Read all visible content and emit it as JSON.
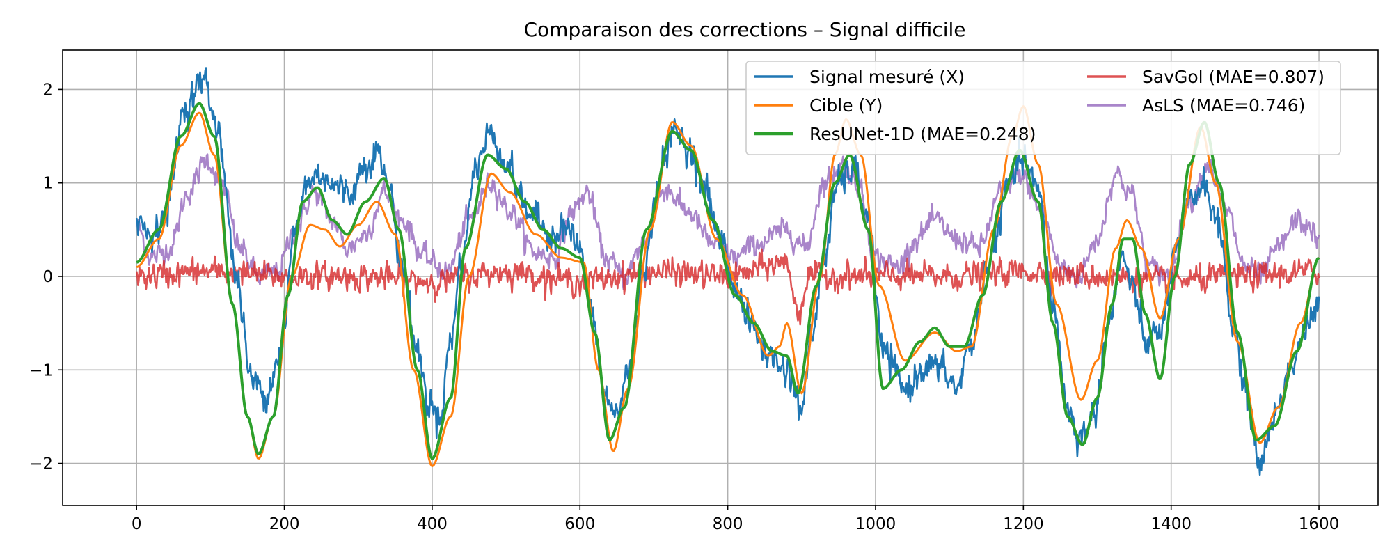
{
  "chart_data": {
    "type": "line",
    "title": "Comparaison des corrections – Signal difficile",
    "xlabel": "",
    "ylabel": "",
    "xlim": [
      -100,
      1680
    ],
    "ylim": [
      -2.45,
      2.42
    ],
    "xticks": [
      0,
      200,
      400,
      600,
      800,
      1000,
      1200,
      1400,
      1600
    ],
    "yticks": [
      -2,
      -1,
      0,
      1,
      2
    ],
    "xtick_labels": [
      "0",
      "200",
      "400",
      "600",
      "800",
      "1000",
      "1200",
      "1400",
      "1600"
    ],
    "ytick_labels": [
      "−2",
      "−1",
      "0",
      "1",
      "2"
    ],
    "grid": true,
    "legend_position": "top-right",
    "legend_columns": 2,
    "x_range": [
      0,
      1600
    ],
    "series": [
      {
        "name": "Signal mesuré (X)",
        "color": "#1f77b4",
        "style": "noisy",
        "noise_amplitude": 0.12,
        "keyframes": [
          [
            0,
            0.6
          ],
          [
            20,
            0.45
          ],
          [
            40,
            0.7
          ],
          [
            65,
            1.8
          ],
          [
            90,
            2.1
          ],
          [
            110,
            1.6
          ],
          [
            135,
            0.0
          ],
          [
            155,
            -1.1
          ],
          [
            175,
            -1.25
          ],
          [
            195,
            -0.8
          ],
          [
            215,
            0.5
          ],
          [
            230,
            1.0
          ],
          [
            250,
            1.1
          ],
          [
            270,
            0.95
          ],
          [
            290,
            0.9
          ],
          [
            310,
            1.2
          ],
          [
            325,
            1.35
          ],
          [
            340,
            1.0
          ],
          [
            360,
            0.1
          ],
          [
            380,
            -0.8
          ],
          [
            395,
            -1.35
          ],
          [
            410,
            -1.5
          ],
          [
            425,
            -0.7
          ],
          [
            440,
            0.2
          ],
          [
            460,
            1.2
          ],
          [
            480,
            1.55
          ],
          [
            500,
            1.2
          ],
          [
            530,
            0.7
          ],
          [
            560,
            0.45
          ],
          [
            580,
            0.55
          ],
          [
            600,
            0.3
          ],
          [
            615,
            -0.4
          ],
          [
            635,
            -1.3
          ],
          [
            650,
            -1.5
          ],
          [
            665,
            -1.0
          ],
          [
            690,
            0.2
          ],
          [
            710,
            1.2
          ],
          [
            730,
            1.55
          ],
          [
            750,
            1.35
          ],
          [
            770,
            0.9
          ],
          [
            790,
            0.4
          ],
          [
            810,
            -0.1
          ],
          [
            830,
            -0.5
          ],
          [
            855,
            -0.85
          ],
          [
            880,
            -1.0
          ],
          [
            900,
            -1.4
          ],
          [
            915,
            -0.6
          ],
          [
            930,
            0.2
          ],
          [
            950,
            1.0
          ],
          [
            970,
            1.15
          ],
          [
            990,
            0.6
          ],
          [
            1010,
            -0.8
          ],
          [
            1040,
            -1.2
          ],
          [
            1070,
            -0.95
          ],
          [
            1090,
            -1.0
          ],
          [
            1110,
            -1.2
          ],
          [
            1130,
            -0.7
          ],
          [
            1155,
            0.2
          ],
          [
            1180,
            1.0
          ],
          [
            1200,
            1.25
          ],
          [
            1220,
            0.9
          ],
          [
            1240,
            -0.3
          ],
          [
            1260,
            -1.4
          ],
          [
            1275,
            -1.75
          ],
          [
            1295,
            -1.5
          ],
          [
            1315,
            -0.5
          ],
          [
            1335,
            0.2
          ],
          [
            1350,
            -0.2
          ],
          [
            1365,
            -0.7
          ],
          [
            1385,
            -0.6
          ],
          [
            1405,
            0.2
          ],
          [
            1425,
            0.8
          ],
          [
            1445,
            1.0
          ],
          [
            1465,
            0.5
          ],
          [
            1485,
            -0.6
          ],
          [
            1505,
            -1.4
          ],
          [
            1520,
            -2.0
          ],
          [
            1540,
            -1.5
          ],
          [
            1560,
            -1.0
          ],
          [
            1580,
            -0.6
          ],
          [
            1600,
            -0.35
          ]
        ]
      },
      {
        "name": "Cible (Y)",
        "color": "#ff7f0e",
        "style": "smooth",
        "keyframes": [
          [
            0,
            0.1
          ],
          [
            30,
            0.4
          ],
          [
            60,
            1.4
          ],
          [
            85,
            1.75
          ],
          [
            105,
            1.3
          ],
          [
            130,
            -0.3
          ],
          [
            150,
            -1.5
          ],
          [
            165,
            -1.95
          ],
          [
            185,
            -1.5
          ],
          [
            210,
            0.0
          ],
          [
            235,
            0.55
          ],
          [
            255,
            0.5
          ],
          [
            275,
            0.32
          ],
          [
            300,
            0.55
          ],
          [
            325,
            0.8
          ],
          [
            350,
            0.45
          ],
          [
            375,
            -1.0
          ],
          [
            400,
            -2.03
          ],
          [
            425,
            -1.5
          ],
          [
            450,
            0.0
          ],
          [
            480,
            1.1
          ],
          [
            505,
            0.9
          ],
          [
            540,
            0.45
          ],
          [
            575,
            0.2
          ],
          [
            605,
            0.15
          ],
          [
            625,
            -1.0
          ],
          [
            645,
            -1.87
          ],
          [
            665,
            -1.2
          ],
          [
            695,
            0.5
          ],
          [
            725,
            1.65
          ],
          [
            750,
            1.4
          ],
          [
            785,
            0.4
          ],
          [
            820,
            -0.2
          ],
          [
            855,
            -0.85
          ],
          [
            870,
            -0.75
          ],
          [
            880,
            -0.5
          ],
          [
            900,
            -1.25
          ],
          [
            925,
            0.0
          ],
          [
            945,
            1.3
          ],
          [
            960,
            1.68
          ],
          [
            980,
            1.3
          ],
          [
            1005,
            -0.1
          ],
          [
            1040,
            -0.9
          ],
          [
            1080,
            -0.6
          ],
          [
            1110,
            -0.8
          ],
          [
            1130,
            -0.75
          ],
          [
            1160,
            0.5
          ],
          [
            1185,
            1.5
          ],
          [
            1200,
            1.82
          ],
          [
            1220,
            1.2
          ],
          [
            1245,
            -0.3
          ],
          [
            1278,
            -1.32
          ],
          [
            1300,
            -0.9
          ],
          [
            1325,
            0.3
          ],
          [
            1340,
            0.6
          ],
          [
            1360,
            0.3
          ],
          [
            1385,
            -0.45
          ],
          [
            1410,
            0.4
          ],
          [
            1440,
            1.6
          ],
          [
            1460,
            1.0
          ],
          [
            1490,
            -0.7
          ],
          [
            1520,
            -1.78
          ],
          [
            1545,
            -1.4
          ],
          [
            1575,
            -0.5
          ],
          [
            1600,
            0.2
          ]
        ]
      },
      {
        "name": "ResUNet-1D (MAE=0.248)",
        "color": "#2ca02c",
        "style": "smooth",
        "keyframes": [
          [
            0,
            0.15
          ],
          [
            30,
            0.5
          ],
          [
            60,
            1.5
          ],
          [
            85,
            1.85
          ],
          [
            105,
            1.5
          ],
          [
            130,
            -0.3
          ],
          [
            150,
            -1.5
          ],
          [
            165,
            -1.9
          ],
          [
            185,
            -1.5
          ],
          [
            205,
            -0.2
          ],
          [
            225,
            0.8
          ],
          [
            245,
            0.95
          ],
          [
            265,
            0.6
          ],
          [
            285,
            0.45
          ],
          [
            310,
            0.8
          ],
          [
            335,
            1.05
          ],
          [
            355,
            0.5
          ],
          [
            380,
            -1.0
          ],
          [
            400,
            -1.95
          ],
          [
            425,
            -1.3
          ],
          [
            445,
            0.3
          ],
          [
            475,
            1.3
          ],
          [
            500,
            1.15
          ],
          [
            525,
            0.8
          ],
          [
            550,
            0.5
          ],
          [
            575,
            0.3
          ],
          [
            600,
            0.2
          ],
          [
            620,
            -0.6
          ],
          [
            640,
            -1.75
          ],
          [
            660,
            -1.4
          ],
          [
            690,
            0.5
          ],
          [
            725,
            1.55
          ],
          [
            750,
            1.35
          ],
          [
            780,
            0.6
          ],
          [
            810,
            -0.2
          ],
          [
            835,
            -0.5
          ],
          [
            860,
            -0.8
          ],
          [
            880,
            -0.85
          ],
          [
            895,
            -1.25
          ],
          [
            920,
            -0.1
          ],
          [
            945,
            1.0
          ],
          [
            965,
            1.3
          ],
          [
            990,
            0.5
          ],
          [
            1010,
            -1.2
          ],
          [
            1035,
            -1.0
          ],
          [
            1060,
            -0.7
          ],
          [
            1080,
            -0.55
          ],
          [
            1100,
            -0.75
          ],
          [
            1120,
            -0.75
          ],
          [
            1145,
            -0.2
          ],
          [
            1170,
            0.8
          ],
          [
            1195,
            1.35
          ],
          [
            1220,
            0.8
          ],
          [
            1240,
            -0.5
          ],
          [
            1260,
            -1.5
          ],
          [
            1280,
            -1.8
          ],
          [
            1300,
            -1.3
          ],
          [
            1320,
            -0.3
          ],
          [
            1335,
            0.4
          ],
          [
            1348,
            0.4
          ],
          [
            1365,
            -0.4
          ],
          [
            1385,
            -1.1
          ],
          [
            1405,
            0.0
          ],
          [
            1425,
            1.2
          ],
          [
            1445,
            1.65
          ],
          [
            1465,
            1.0
          ],
          [
            1490,
            -0.6
          ],
          [
            1515,
            -1.75
          ],
          [
            1540,
            -1.6
          ],
          [
            1570,
            -0.8
          ],
          [
            1600,
            0.2
          ]
        ]
      },
      {
        "name": "SavGol (MAE=0.807)",
        "color": "#d62728",
        "style": "noisy",
        "noise_amplitude": 0.1,
        "keyframes": [
          [
            0,
            0.0
          ],
          [
            100,
            0.05
          ],
          [
            200,
            0.0
          ],
          [
            300,
            0.0
          ],
          [
            400,
            -0.05
          ],
          [
            500,
            0.05
          ],
          [
            600,
            -0.05
          ],
          [
            700,
            0.05
          ],
          [
            800,
            0.0
          ],
          [
            880,
            0.15
          ],
          [
            895,
            -0.4
          ],
          [
            910,
            0.0
          ],
          [
            1000,
            0.0
          ],
          [
            1100,
            0.0
          ],
          [
            1200,
            0.05
          ],
          [
            1300,
            0.0
          ],
          [
            1400,
            -0.05
          ],
          [
            1500,
            0.0
          ],
          [
            1600,
            0.05
          ]
        ]
      },
      {
        "name": "AsLS (MAE=0.746)",
        "color": "#9467bd",
        "style": "noisy",
        "noise_amplitude": 0.09,
        "keyframes": [
          [
            0,
            0.55
          ],
          [
            20,
            0.2
          ],
          [
            45,
            0.3
          ],
          [
            70,
            0.9
          ],
          [
            95,
            1.25
          ],
          [
            115,
            1.0
          ],
          [
            140,
            0.3
          ],
          [
            165,
            0.0
          ],
          [
            190,
            0.05
          ],
          [
            215,
            0.5
          ],
          [
            240,
            0.9
          ],
          [
            265,
            0.6
          ],
          [
            285,
            0.3
          ],
          [
            310,
            0.45
          ],
          [
            335,
            0.9
          ],
          [
            360,
            0.6
          ],
          [
            390,
            0.2
          ],
          [
            420,
            0.05
          ],
          [
            450,
            0.6
          ],
          [
            480,
            1.0
          ],
          [
            505,
            0.7
          ],
          [
            540,
            0.25
          ],
          [
            565,
            0.2
          ],
          [
            590,
            0.7
          ],
          [
            610,
            0.9
          ],
          [
            635,
            0.2
          ],
          [
            660,
            0.0
          ],
          [
            690,
            0.4
          ],
          [
            715,
            0.95
          ],
          [
            745,
            0.7
          ],
          [
            780,
            0.35
          ],
          [
            810,
            0.2
          ],
          [
            840,
            0.35
          ],
          [
            880,
            0.5
          ],
          [
            905,
            0.3
          ],
          [
            930,
            1.0
          ],
          [
            955,
            1.2
          ],
          [
            975,
            1.0
          ],
          [
            1000,
            0.2
          ],
          [
            1030,
            0.1
          ],
          [
            1055,
            0.4
          ],
          [
            1080,
            0.6
          ],
          [
            1110,
            0.4
          ],
          [
            1140,
            0.3
          ],
          [
            1170,
            0.9
          ],
          [
            1195,
            1.1
          ],
          [
            1225,
            0.7
          ],
          [
            1250,
            0.1
          ],
          [
            1275,
            0.0
          ],
          [
            1300,
            0.4
          ],
          [
            1325,
            1.1
          ],
          [
            1345,
            0.9
          ],
          [
            1370,
            0.1
          ],
          [
            1395,
            0.0
          ],
          [
            1425,
            0.8
          ],
          [
            1450,
            1.2
          ],
          [
            1475,
            0.7
          ],
          [
            1500,
            0.1
          ],
          [
            1520,
            0.0
          ],
          [
            1545,
            0.3
          ],
          [
            1570,
            0.6
          ],
          [
            1590,
            0.5
          ],
          [
            1600,
            0.35
          ]
        ]
      }
    ]
  }
}
